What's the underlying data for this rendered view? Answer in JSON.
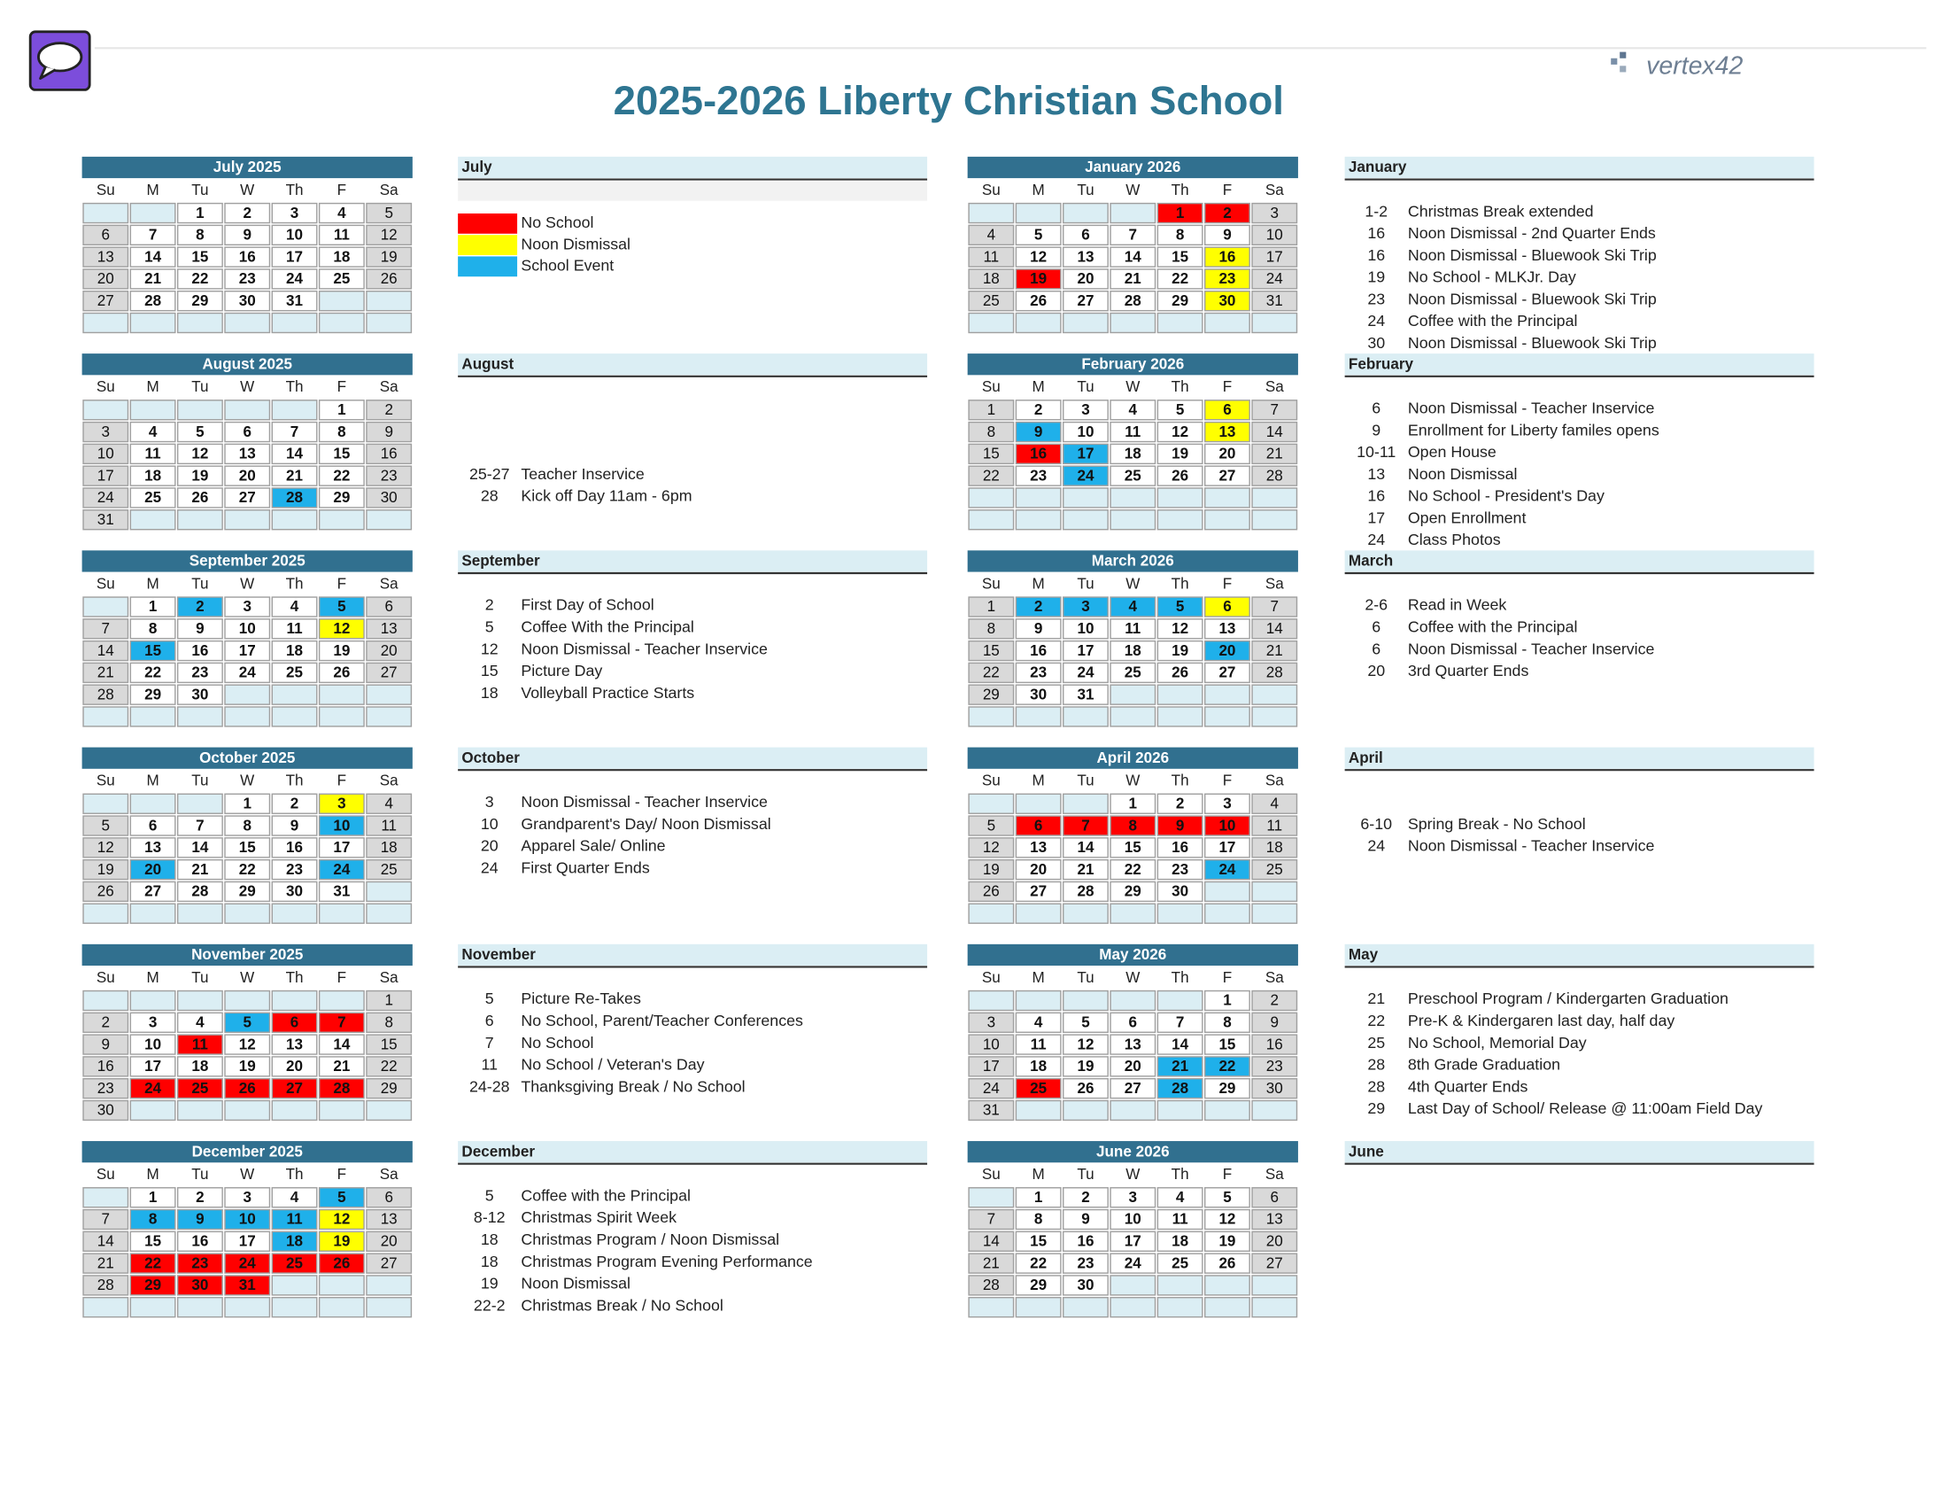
{
  "title": "2025-2026 Liberty Christian School",
  "logo": "vertex42",
  "weekdays": [
    "Su",
    "M",
    "Tu",
    "W",
    "Th",
    "F",
    "Sa"
  ],
  "legend": [
    {
      "label": "No School",
      "color": "#ff0000"
    },
    {
      "label": "Noon Dismissal",
      "color": "#ffff00"
    },
    {
      "label": "School Event",
      "color": "#1fb0ea"
    }
  ],
  "months": [
    {
      "title": "July 2025",
      "name": "July",
      "weeks": [
        [
          null,
          null,
          1,
          2,
          3,
          4,
          5
        ],
        [
          6,
          7,
          8,
          9,
          10,
          11,
          12
        ],
        [
          13,
          14,
          15,
          16,
          17,
          18,
          19
        ],
        [
          20,
          21,
          22,
          23,
          24,
          25,
          26
        ],
        [
          27,
          28,
          29,
          30,
          31,
          null,
          null
        ],
        [
          null,
          null,
          null,
          null,
          null,
          null,
          null
        ]
      ],
      "highlights": [
        [],
        [],
        []
      ],
      "events": []
    },
    {
      "title": "August 2025",
      "name": "August",
      "weeks": [
        [
          null,
          null,
          null,
          null,
          null,
          1,
          2
        ],
        [
          3,
          4,
          5,
          6,
          7,
          8,
          9
        ],
        [
          10,
          11,
          12,
          13,
          14,
          15,
          16
        ],
        [
          17,
          18,
          19,
          20,
          21,
          22,
          23
        ],
        [
          24,
          25,
          26,
          27,
          28,
          29,
          30
        ],
        [
          31,
          null,
          null,
          null,
          null,
          null,
          null
        ]
      ],
      "highlights": [
        [],
        [],
        [
          28
        ]
      ],
      "events": [
        {
          "day": "25-27",
          "text": "Teacher Inservice"
        },
        {
          "day": "28",
          "text": "Kick off Day 11am - 6pm"
        }
      ]
    },
    {
      "title": "September 2025",
      "name": "September",
      "weeks": [
        [
          null,
          1,
          2,
          3,
          4,
          5,
          6
        ],
        [
          7,
          8,
          9,
          10,
          11,
          12,
          13
        ],
        [
          14,
          15,
          16,
          17,
          18,
          19,
          20
        ],
        [
          21,
          22,
          23,
          24,
          25,
          26,
          27
        ],
        [
          28,
          29,
          30,
          null,
          null,
          null,
          null
        ],
        [
          null,
          null,
          null,
          null,
          null,
          null,
          null
        ]
      ],
      "highlights": [
        [],
        [
          12
        ],
        [
          2,
          5,
          15
        ]
      ],
      "events": [
        {
          "day": "2",
          "text": "First Day of School"
        },
        {
          "day": "5",
          "text": "Coffee With the Principal"
        },
        {
          "day": "12",
          "text": "Noon Dismissal - Teacher Inservice"
        },
        {
          "day": "15",
          "text": "Picture Day"
        },
        {
          "day": "18",
          "text": "Volleyball Practice Starts"
        }
      ]
    },
    {
      "title": "October 2025",
      "name": "October",
      "weeks": [
        [
          null,
          null,
          null,
          1,
          2,
          3,
          4
        ],
        [
          5,
          6,
          7,
          8,
          9,
          10,
          11
        ],
        [
          12,
          13,
          14,
          15,
          16,
          17,
          18
        ],
        [
          19,
          20,
          21,
          22,
          23,
          24,
          25
        ],
        [
          26,
          27,
          28,
          29,
          30,
          31,
          null
        ],
        [
          null,
          null,
          null,
          null,
          null,
          null,
          null
        ]
      ],
      "highlights": [
        [],
        [
          3
        ],
        [
          10,
          20,
          24
        ]
      ],
      "events": [
        {
          "day": "3",
          "text": "Noon Dismissal - Teacher Inservice"
        },
        {
          "day": "10",
          "text": "Grandparent's Day/ Noon Dismissal"
        },
        {
          "day": "20",
          "text": "Apparel Sale/ Online"
        },
        {
          "day": "24",
          "text": "First Quarter Ends"
        }
      ]
    },
    {
      "title": "November 2025",
      "name": "November",
      "weeks": [
        [
          null,
          null,
          null,
          null,
          null,
          null,
          1
        ],
        [
          2,
          3,
          4,
          5,
          6,
          7,
          8
        ],
        [
          9,
          10,
          11,
          12,
          13,
          14,
          15
        ],
        [
          16,
          17,
          18,
          19,
          20,
          21,
          22
        ],
        [
          23,
          24,
          25,
          26,
          27,
          28,
          29
        ],
        [
          30,
          null,
          null,
          null,
          null,
          null,
          null
        ]
      ],
      "highlights": [
        [
          6,
          7,
          11,
          24,
          25,
          26,
          27,
          28
        ],
        [],
        [
          5
        ]
      ],
      "events": [
        {
          "day": "5",
          "text": "Picture Re-Takes"
        },
        {
          "day": "6",
          "text": "No School, Parent/Teacher Conferences"
        },
        {
          "day": "7",
          "text": "No School"
        },
        {
          "day": "11",
          "text": "No School / Veteran's Day"
        },
        {
          "day": "24-28",
          "text": "Thanksgiving Break / No School"
        }
      ]
    },
    {
      "title": "December 2025",
      "name": "December",
      "weeks": [
        [
          null,
          1,
          2,
          3,
          4,
          5,
          6
        ],
        [
          7,
          8,
          9,
          10,
          11,
          12,
          13
        ],
        [
          14,
          15,
          16,
          17,
          18,
          19,
          20
        ],
        [
          21,
          22,
          23,
          24,
          25,
          26,
          27
        ],
        [
          28,
          29,
          30,
          31,
          null,
          null,
          null
        ],
        [
          null,
          null,
          null,
          null,
          null,
          null,
          null
        ]
      ],
      "highlights": [
        [
          22,
          23,
          24,
          25,
          26,
          29,
          30,
          31
        ],
        [
          12,
          19
        ],
        [
          5,
          8,
          9,
          10,
          11,
          18
        ]
      ],
      "events": [
        {
          "day": "5",
          "text": "Coffee with the Principal"
        },
        {
          "day": "8-12",
          "text": "Christmas Spirit Week"
        },
        {
          "day": "18",
          "text": "Christmas Program / Noon Dismissal"
        },
        {
          "day": "18",
          "text": "Christmas Program Evening Performance"
        },
        {
          "day": "19",
          "text": "Noon Dismissal"
        },
        {
          "day": "22-2",
          "text": "Christmas Break /  No School"
        }
      ]
    },
    {
      "title": "January 2026",
      "name": "January",
      "weeks": [
        [
          null,
          null,
          null,
          null,
          1,
          2,
          3
        ],
        [
          4,
          5,
          6,
          7,
          8,
          9,
          10
        ],
        [
          11,
          12,
          13,
          14,
          15,
          16,
          17
        ],
        [
          18,
          19,
          20,
          21,
          22,
          23,
          24
        ],
        [
          25,
          26,
          27,
          28,
          29,
          30,
          31
        ],
        [
          null,
          null,
          null,
          null,
          null,
          null,
          null
        ]
      ],
      "highlights": [
        [
          1,
          2,
          19
        ],
        [
          16,
          23,
          30
        ],
        []
      ],
      "events": [
        {
          "day": "1-2",
          "text": "Christmas Break extended"
        },
        {
          "day": "16",
          "text": "Noon Dismissal - 2nd Quarter Ends"
        },
        {
          "day": "16",
          "text": "Noon Dismissal - Bluewook Ski Trip"
        },
        {
          "day": "19",
          "text": "No School - MLKJr. Day"
        },
        {
          "day": "23",
          "text": "Noon Dismissal - Bluewook Ski Trip"
        },
        {
          "day": "24",
          "text": "Coffee with the Principal"
        },
        {
          "day": "30",
          "text": "Noon Dismissal - Bluewook Ski Trip"
        }
      ]
    },
    {
      "title": "February 2026",
      "name": "February",
      "weeks": [
        [
          1,
          2,
          3,
          4,
          5,
          6,
          7
        ],
        [
          8,
          9,
          10,
          11,
          12,
          13,
          14
        ],
        [
          15,
          16,
          17,
          18,
          19,
          20,
          21
        ],
        [
          22,
          23,
          24,
          25,
          26,
          27,
          28
        ],
        [
          null,
          null,
          null,
          null,
          null,
          null,
          null
        ],
        [
          null,
          null,
          null,
          null,
          null,
          null,
          null
        ]
      ],
      "highlights": [
        [
          16
        ],
        [
          6,
          13
        ],
        [
          9,
          17,
          24
        ]
      ],
      "events": [
        {
          "day": "6",
          "text": "Noon Dismissal - Teacher Inservice"
        },
        {
          "day": "9",
          "text": "Enrollment for Liberty familes opens"
        },
        {
          "day": "10-11",
          "text": "Open House"
        },
        {
          "day": "13",
          "text": "Noon Dismissal"
        },
        {
          "day": "16",
          "text": "No School - President's Day"
        },
        {
          "day": "17",
          "text": "Open Enrollment"
        },
        {
          "day": "24",
          "text": "Class Photos"
        }
      ]
    },
    {
      "title": "March 2026",
      "name": "March",
      "weeks": [
        [
          1,
          2,
          3,
          4,
          5,
          6,
          7
        ],
        [
          8,
          9,
          10,
          11,
          12,
          13,
          14
        ],
        [
          15,
          16,
          17,
          18,
          19,
          20,
          21
        ],
        [
          22,
          23,
          24,
          25,
          26,
          27,
          28
        ],
        [
          29,
          30,
          31,
          null,
          null,
          null,
          null
        ],
        [
          null,
          null,
          null,
          null,
          null,
          null,
          null
        ]
      ],
      "highlights": [
        [],
        [
          6
        ],
        [
          2,
          3,
          4,
          5,
          20
        ]
      ],
      "events": [
        {
          "day": "2-6",
          "text": "Read in Week"
        },
        {
          "day": "6",
          "text": "Coffee with the Principal"
        },
        {
          "day": "6",
          "text": "Noon Dismissal - Teacher Inservice"
        },
        {
          "day": "20",
          "text": "3rd Quarter Ends"
        }
      ]
    },
    {
      "title": "April 2026",
      "name": "April",
      "weeks": [
        [
          null,
          null,
          null,
          1,
          2,
          3,
          4
        ],
        [
          5,
          6,
          7,
          8,
          9,
          10,
          11
        ],
        [
          12,
          13,
          14,
          15,
          16,
          17,
          18
        ],
        [
          19,
          20,
          21,
          22,
          23,
          24,
          25
        ],
        [
          26,
          27,
          28,
          29,
          30,
          null,
          null
        ],
        [
          null,
          null,
          null,
          null,
          null,
          null,
          null
        ]
      ],
      "highlights": [
        [
          6,
          7,
          8,
          9,
          10
        ],
        [],
        [
          24
        ]
      ],
      "events": [
        {
          "day": "6-10",
          "text": "Spring Break - No School"
        },
        {
          "day": "24",
          "text": "Noon Dismissal - Teacher Inservice"
        }
      ]
    },
    {
      "title": "May 2026",
      "name": "May",
      "weeks": [
        [
          null,
          null,
          null,
          null,
          null,
          1,
          2
        ],
        [
          3,
          4,
          5,
          6,
          7,
          8,
          9
        ],
        [
          10,
          11,
          12,
          13,
          14,
          15,
          16
        ],
        [
          17,
          18,
          19,
          20,
          21,
          22,
          23
        ],
        [
          24,
          25,
          26,
          27,
          28,
          29,
          30
        ],
        [
          31,
          null,
          null,
          null,
          null,
          null,
          null
        ]
      ],
      "highlights": [
        [
          25
        ],
        [],
        [
          21,
          22,
          28
        ]
      ],
      "events": [
        {
          "day": "21",
          "text": "Preschool Program / Kindergarten Graduation"
        },
        {
          "day": "22",
          "text": "Pre-K & Kindergaren last day, half day"
        },
        {
          "day": "25",
          "text": "No School, Memorial Day"
        },
        {
          "day": "28",
          "text": "8th Grade Graduation"
        },
        {
          "day": "28",
          "text": "4th Quarter Ends"
        },
        {
          "day": "29",
          "text": "Last Day of School/ Release @ 11:00am Field Day"
        }
      ]
    },
    {
      "title": "June 2026",
      "name": "June",
      "weeks": [
        [
          null,
          1,
          2,
          3,
          4,
          5,
          6
        ],
        [
          7,
          8,
          9,
          10,
          11,
          12,
          13
        ],
        [
          14,
          15,
          16,
          17,
          18,
          19,
          20
        ],
        [
          21,
          22,
          23,
          24,
          25,
          26,
          27
        ],
        [
          28,
          29,
          30,
          null,
          null,
          null,
          null
        ],
        [
          null,
          null,
          null,
          null,
          null,
          null,
          null
        ]
      ],
      "highlights": [
        [],
        [],
        []
      ],
      "events": []
    }
  ]
}
